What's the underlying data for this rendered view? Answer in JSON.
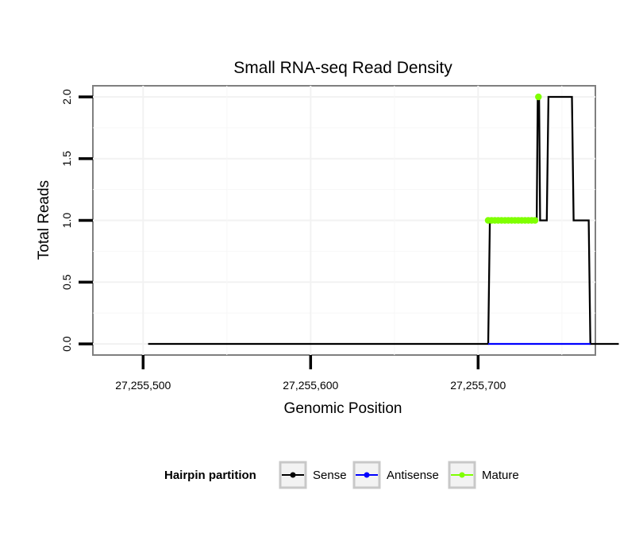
{
  "chart_data": {
    "type": "line",
    "title": "Small RNA-seq Read Density",
    "xlabel": "Genomic Position",
    "ylabel": "Total Reads",
    "xlim": [
      27255470,
      27255770
    ],
    "ylim": [
      -0.09,
      2.09
    ],
    "x_ticks": [
      27255500,
      27255600,
      27255700
    ],
    "x_tick_labels": [
      "27,255,500",
      "27,255,600",
      "27,255,700"
    ],
    "y_ticks": [
      0,
      0.5,
      1,
      1.5,
      2
    ],
    "y_tick_labels": [
      "0.0",
      "0.5",
      "1.0",
      "1.5",
      "2.0"
    ],
    "grid": true,
    "legend": {
      "title": "Hairpin partition",
      "position": "bottom",
      "entries": [
        {
          "name": "Sense",
          "color": "#000000"
        },
        {
          "name": "Antisense",
          "color": "#0000ff"
        },
        {
          "name": "Mature",
          "color": "#7fff00"
        }
      ]
    },
    "series": [
      {
        "name": "Sense",
        "color": "#000000",
        "style": "line",
        "x": [
          27255503,
          27255706,
          27255707,
          27255735,
          27255735.6,
          27255736.4,
          27255737,
          27255741,
          27255742,
          27255756,
          27255757,
          27255766,
          27255767,
          27255784
        ],
        "y": [
          0,
          0,
          1,
          1,
          2,
          2,
          1,
          1,
          2,
          2,
          1,
          1,
          0,
          0
        ]
      },
      {
        "name": "Antisense",
        "color": "#0000ff",
        "style": "line",
        "x": [
          27255706,
          27255767
        ],
        "y": [
          0,
          0
        ]
      },
      {
        "name": "Mature",
        "color": "#7fff00",
        "style": "points",
        "x": [
          27255706,
          27255708,
          27255710,
          27255712,
          27255714,
          27255716,
          27255718,
          27255720,
          27255722,
          27255724,
          27255726,
          27255728,
          27255730,
          27255732,
          27255734,
          27255736
        ],
        "y": [
          1,
          1,
          1,
          1,
          1,
          1,
          1,
          1,
          1,
          1,
          1,
          1,
          1,
          1,
          1,
          2
        ]
      }
    ]
  }
}
